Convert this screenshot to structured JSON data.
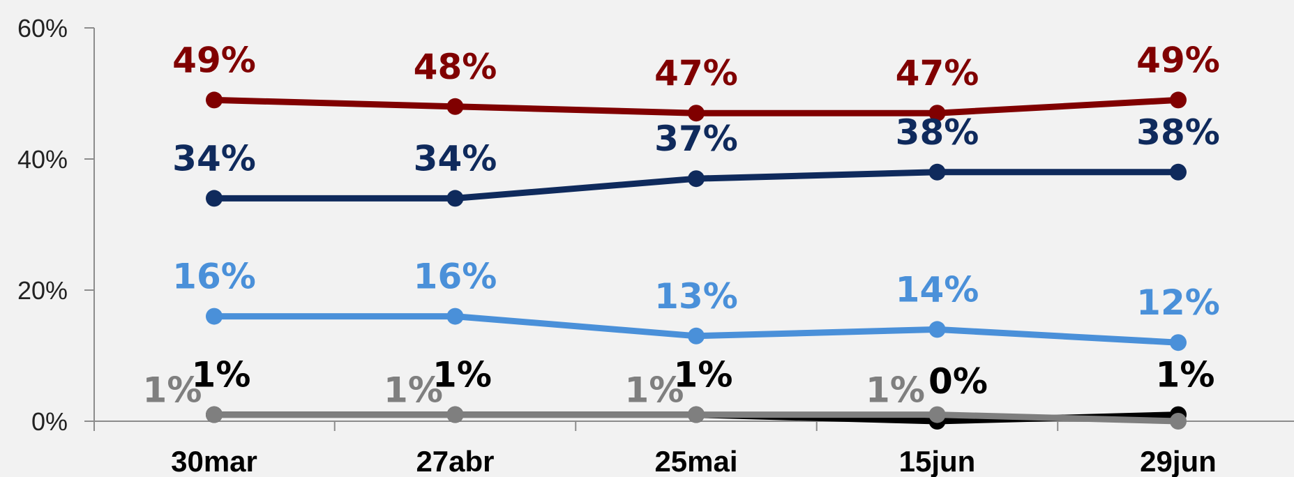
{
  "chart_data": {
    "type": "line",
    "title": "",
    "xlabel": "",
    "ylabel": "",
    "categories": [
      "30mar",
      "27abr",
      "25mai",
      "15jun",
      "29jun"
    ],
    "ylim": [
      0,
      60
    ],
    "yticks": [
      0,
      20,
      40,
      60
    ],
    "ytick_labels": [
      "0%",
      "20%",
      "40%",
      "60%"
    ],
    "grid": false,
    "legend": "none",
    "series": [
      {
        "color": "#800000",
        "values": [
          49,
          48,
          47,
          47,
          49
        ],
        "labels": [
          "49%",
          "48%",
          "47%",
          "47%",
          "49%"
        ]
      },
      {
        "color": "#0f2a5c",
        "values": [
          34,
          34,
          37,
          38,
          38
        ],
        "labels": [
          "34%",
          "34%",
          "37%",
          "38%",
          "38%"
        ]
      },
      {
        "color": "#4a90d9",
        "values": [
          16,
          16,
          13,
          14,
          12
        ],
        "labels": [
          "16%",
          "16%",
          "13%",
          "14%",
          "12%"
        ]
      },
      {
        "color": "#000000",
        "values": [
          1,
          1,
          1,
          0,
          1
        ],
        "labels": [
          "1%",
          "1%",
          "1%",
          "0%",
          "1%"
        ]
      },
      {
        "color": "#7f7f7f",
        "values": [
          1,
          1,
          1,
          1,
          0
        ],
        "labels": [
          "1%",
          "1%",
          "1%",
          "1%",
          ""
        ]
      }
    ]
  }
}
